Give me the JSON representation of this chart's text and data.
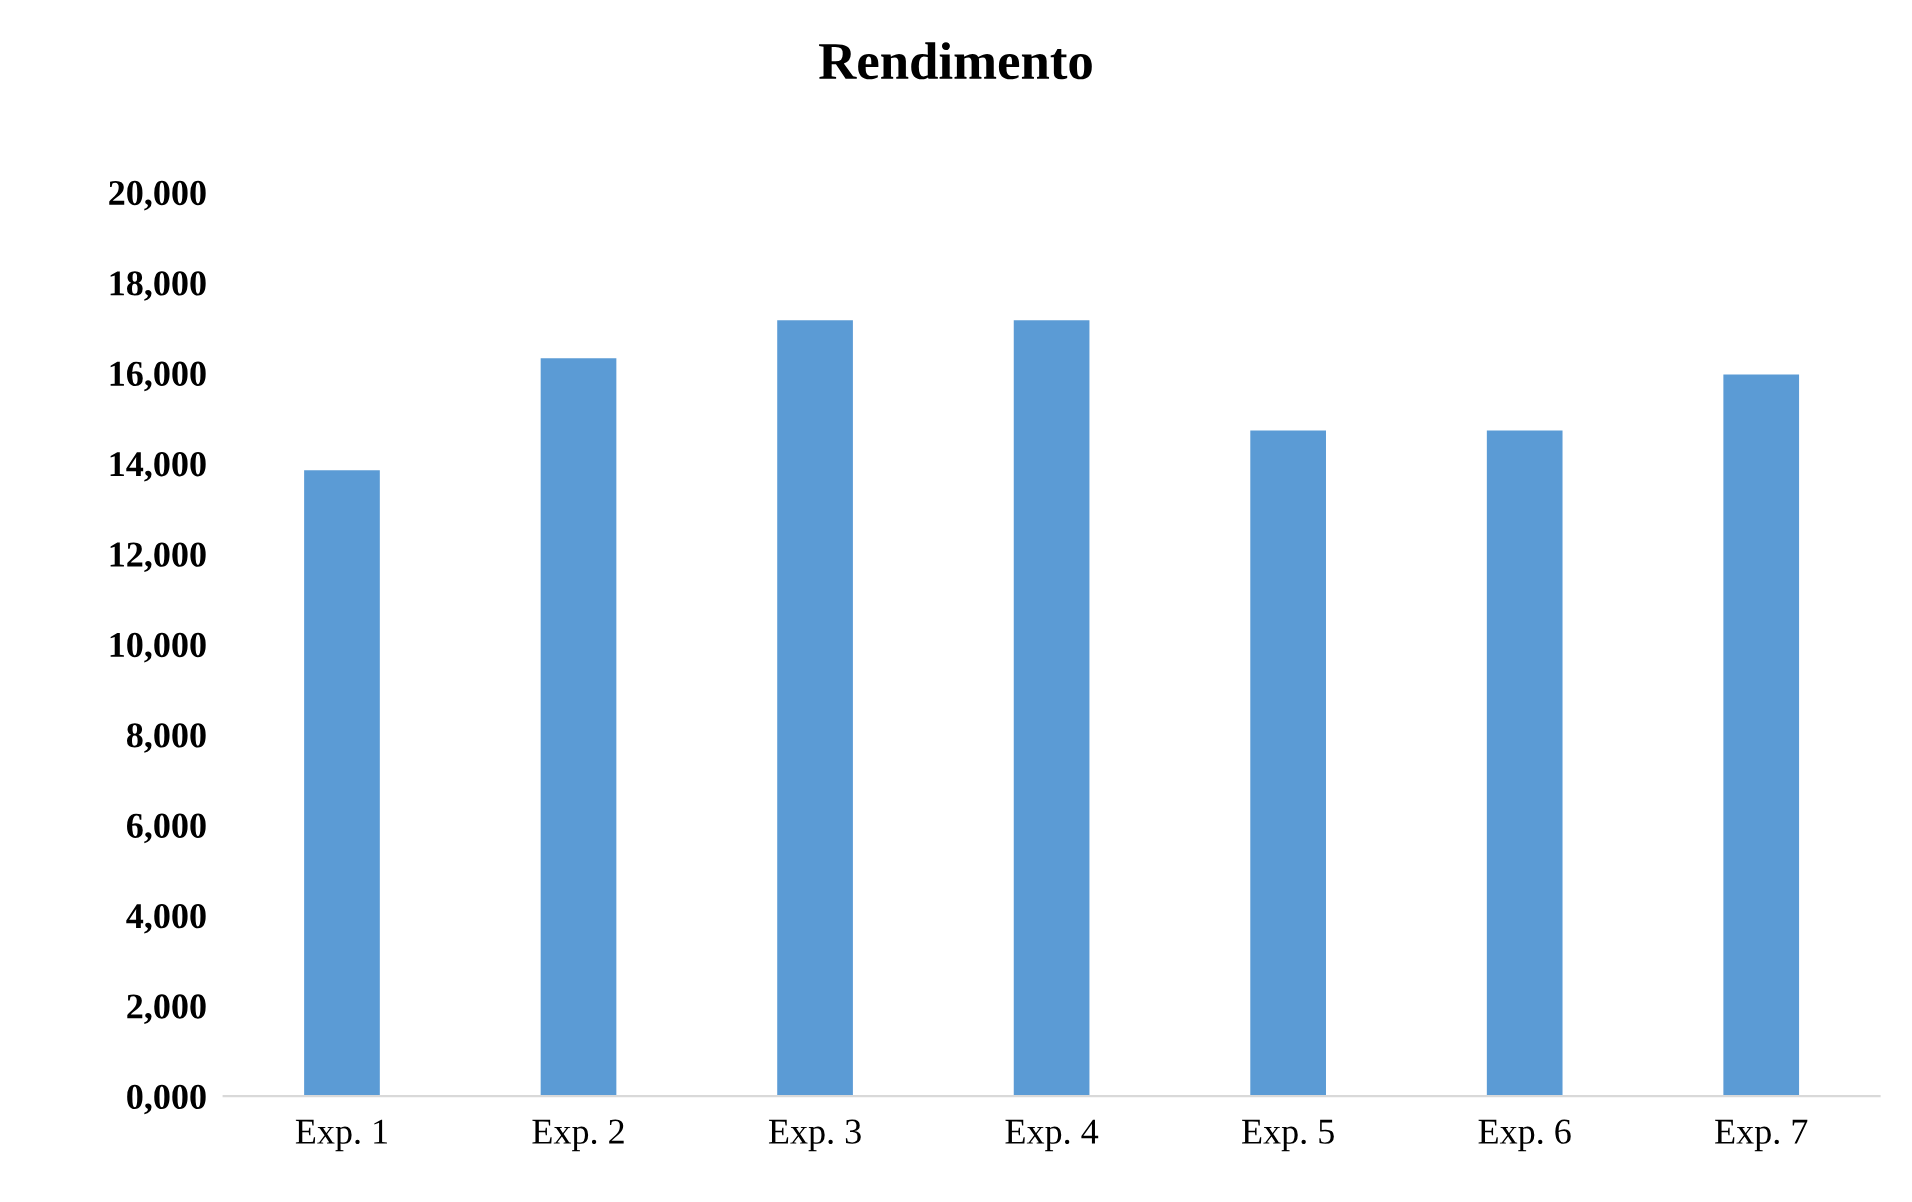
{
  "chart_data": {
    "type": "bar",
    "title": "Rendimento",
    "categories": [
      "Exp. 1",
      "Exp. 2",
      "Exp. 3",
      "Exp. 4",
      "Exp. 5",
      "Exp. 6",
      "Exp. 7"
    ],
    "values": [
      13850,
      16330,
      17170,
      17170,
      14730,
      14730,
      15970
    ],
    "color": "#5b9bd5",
    "ylim": [
      0,
      20000
    ],
    "yticks": [
      {
        "value": 0,
        "label": "0,000"
      },
      {
        "value": 2000,
        "label": "2,000"
      },
      {
        "value": 4000,
        "label": "4,000"
      },
      {
        "value": 6000,
        "label": "6,000"
      },
      {
        "value": 8000,
        "label": "8,000"
      },
      {
        "value": 10000,
        "label": "10,000"
      },
      {
        "value": 12000,
        "label": "12,000"
      },
      {
        "value": 14000,
        "label": "14,000"
      },
      {
        "value": 16000,
        "label": "16,000"
      },
      {
        "value": 18000,
        "label": "18,000"
      },
      {
        "value": 20000,
        "label": "20,000"
      }
    ]
  }
}
